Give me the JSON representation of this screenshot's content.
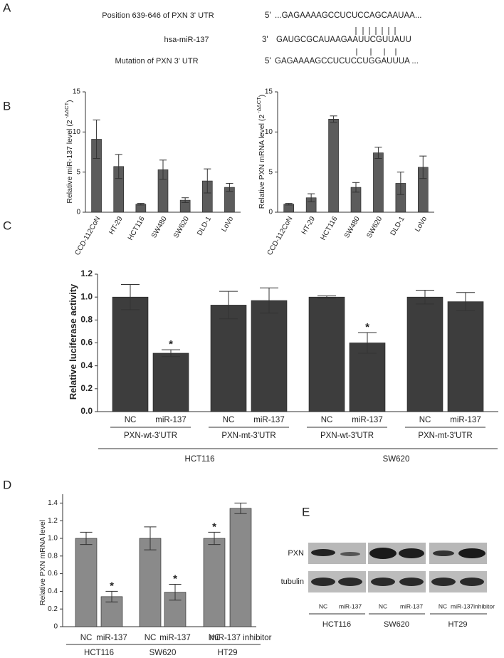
{
  "panel_labels": [
    "A",
    "B",
    "C",
    "D",
    "E"
  ],
  "panel_a": {
    "rows": [
      {
        "label": "Position 639-646 of PXN 3' UTR",
        "end": "5'",
        "sequence": "...GAGAAAAGCCUCUCCAGCAAUAA..."
      },
      {
        "label": "hsa-miR-137",
        "end": "3'",
        "sequence": "GAUGCGCAUAAGAAUUCGUUAUU"
      },
      {
        "label": "Mutation of PXN 3' UTR",
        "end": "5'",
        "sequence": "GAGAAAAGCCUCUCCUGGAUUUA ..."
      }
    ]
  },
  "chart_data": [
    {
      "type": "bar",
      "categories": [
        "CCD-112CoN",
        "HT-29",
        "HCT116",
        "SW480",
        "SW620",
        "DLD-1",
        "LoVo"
      ],
      "values": [
        9.1,
        5.7,
        1.0,
        5.3,
        1.5,
        3.9,
        3.1
      ],
      "errors": [
        2.4,
        1.5,
        0.1,
        1.2,
        0.3,
        1.5,
        0.5
      ],
      "color": "#5c5c5c",
      "ylabel": "Relative miR-137 level (2",
      "ylabel_sup": "-ΔΔCT",
      "ylabel_end": ")",
      "ylim": [
        0,
        15
      ],
      "yticks": [
        0,
        5,
        10,
        15
      ]
    },
    {
      "type": "bar",
      "categories": [
        "CCD-112CoN",
        "HT-29",
        "HCT116",
        "SW480",
        "SW620",
        "DLD-1",
        "LoVo"
      ],
      "values": [
        1.0,
        1.8,
        11.6,
        3.1,
        7.4,
        3.6,
        5.6
      ],
      "errors": [
        0.1,
        0.5,
        0.4,
        0.6,
        0.7,
        1.4,
        1.4
      ],
      "color": "#5c5c5c",
      "ylabel": "Relative PXN mRNA level (2",
      "ylabel_sup": "-ΔΔCT",
      "ylabel_end": ")",
      "ylim": [
        0,
        15
      ],
      "yticks": [
        0,
        5,
        10,
        15
      ]
    },
    {
      "type": "bar",
      "categories": [
        "NC",
        "miR-137",
        "NC",
        "miR-137",
        "NC",
        "miR-137",
        "NC",
        "miR-137"
      ],
      "values": [
        1.0,
        0.51,
        0.93,
        0.97,
        1.0,
        0.6,
        1.0,
        0.96
      ],
      "errors": [
        0.11,
        0.03,
        0.12,
        0.11,
        0.01,
        0.09,
        0.06,
        0.08
      ],
      "color": "#3d3d3d",
      "ylabel": "Relative luciferase activity",
      "ylim": [
        0,
        1.2
      ],
      "yticks": [
        {
          "value": 0,
          "label": "0.0"
        },
        0.2,
        0.4,
        0.6,
        0.8,
        {
          "value": 1,
          "label": "1.0"
        },
        1.2
      ],
      "groups": [
        "PXN-wt-3'UTR",
        "PXN-mt-3'UTR",
        "PXN-wt-3'UTR",
        "PXN-mt-3'UTR"
      ],
      "supergroups": [
        "HCT116",
        "SW620"
      ],
      "annotations": [
        {
          "index": 1,
          "text": "*"
        },
        {
          "index": 5,
          "text": "*"
        }
      ]
    },
    {
      "type": "bar",
      "categories": [
        "NC",
        "miR-137",
        "NC",
        "miR-137",
        "NC",
        "miR-137 inhibitor"
      ],
      "values": [
        1.0,
        0.34,
        1.0,
        0.39,
        1.0,
        1.34
      ],
      "errors": [
        0.07,
        0.06,
        0.13,
        0.09,
        0.07,
        0.06
      ],
      "color": "#8a8a8a",
      "ylabel": "Relative PXN mRNA level",
      "ylim": [
        0,
        1.5
      ],
      "yticks": [
        0,
        0.2,
        0.4,
        0.6,
        0.8,
        {
          "value": 1,
          "label": "1.0"
        },
        1.2,
        1.4
      ],
      "groups": [
        "HCT116",
        "SW620",
        "HT29"
      ],
      "annotations": [
        {
          "index": 1,
          "text": "*"
        },
        {
          "index": 3,
          "text": "*"
        },
        {
          "index": 4,
          "text": "*"
        }
      ]
    }
  ],
  "panel_e": {
    "rows": [
      "PXN",
      "tubulin"
    ],
    "lanes": [
      "NC",
      "miR-137",
      "NC",
      "miR-137",
      "NC",
      "miR-137inhibitor"
    ],
    "groups": [
      "HCT116",
      "SW620",
      "HT29"
    ]
  }
}
